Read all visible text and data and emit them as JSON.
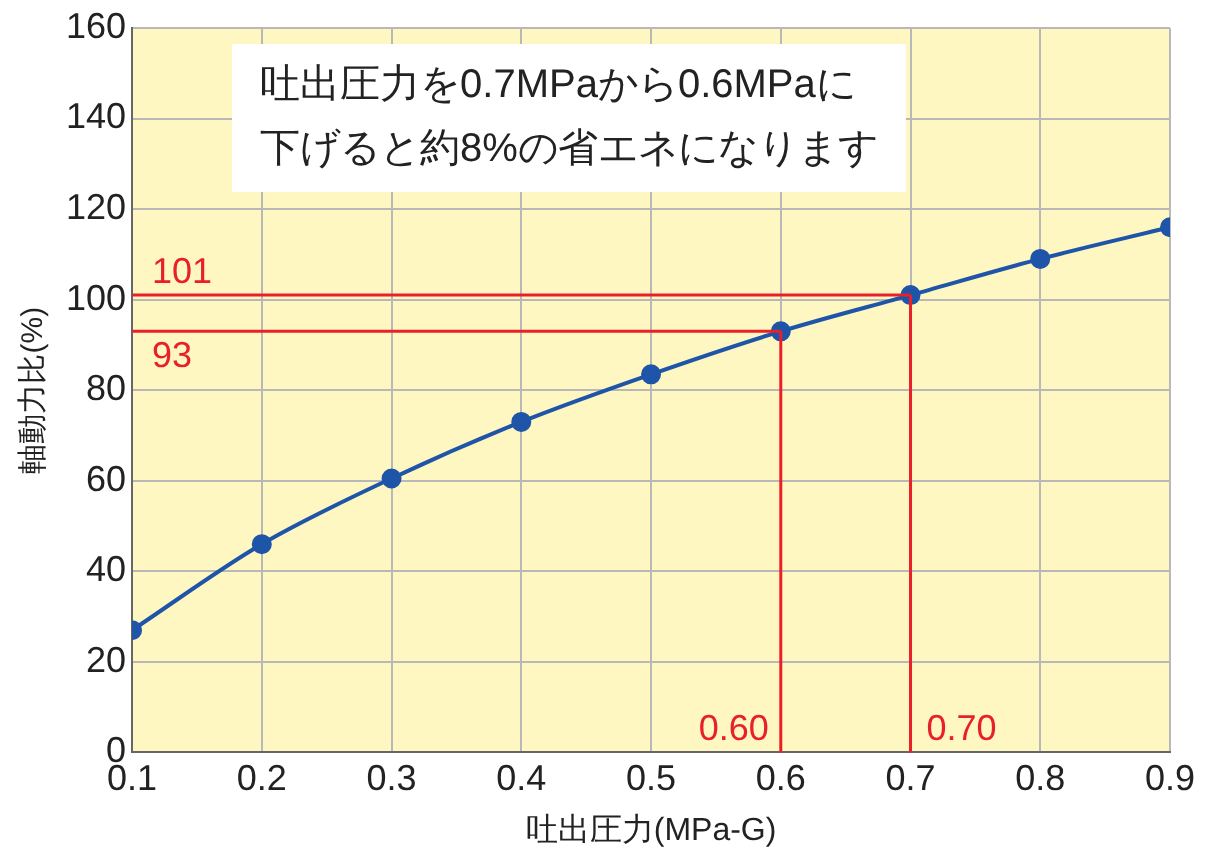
{
  "chart_data": {
    "type": "line",
    "xlabel": "吐出圧力(MPa-G)",
    "ylabel": "軸動力比(%)",
    "x": [
      0.1,
      0.2,
      0.3,
      0.4,
      0.5,
      0.6,
      0.7,
      0.8,
      0.9
    ],
    "series": [
      {
        "color": "#1f55a8",
        "values": [
          27,
          46,
          60.5,
          73,
          83.5,
          93,
          101,
          109,
          116
        ]
      }
    ],
    "xlim": [
      0.1,
      0.9
    ],
    "xticks": [
      0.1,
      0.2,
      0.3,
      0.4,
      0.5,
      0.6,
      0.7,
      0.8,
      0.9
    ],
    "ylim": [
      0,
      160
    ],
    "yticks": [
      0,
      20,
      40,
      60,
      80,
      100,
      120,
      140,
      160
    ],
    "grid": true,
    "legend": false,
    "marker": "circle",
    "line_style": "solid",
    "ref_lines": [
      {
        "axis": "y",
        "value": 101,
        "label": "101",
        "color": "#e8202a"
      },
      {
        "axis": "y",
        "value": 93,
        "label": "93",
        "color": "#e8202a"
      },
      {
        "axis": "x",
        "value": 0.6,
        "label": "0.60",
        "color": "#e8202a"
      },
      {
        "axis": "x",
        "value": 0.7,
        "label": "0.70",
        "color": "#e8202a"
      }
    ],
    "annotations": [
      "吐出圧力を0.7MPaから0.6MPaに",
      "下げると約8%の省エネになります"
    ]
  }
}
